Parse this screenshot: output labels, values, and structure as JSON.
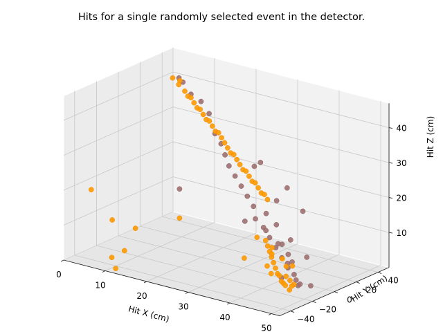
{
  "chart_data": {
    "type": "scatter",
    "title": "Hits for a single randomly selected event in the detector.",
    "xlabel": "Hit X (cm)",
    "ylabel": "Hit Y (cm)",
    "zlabel": "Hit Z (cm)",
    "xticks": [
      "0",
      "10",
      "20",
      "30",
      "40",
      "50"
    ],
    "yticks": [
      "−40",
      "−20",
      "0",
      "20",
      "40"
    ],
    "zticks": [
      "10",
      "20",
      "30",
      "40"
    ],
    "grid": true,
    "series": [
      {
        "color": "#a07070",
        "points_xyz": [
          [
            3,
            44,
            40
          ],
          [
            5,
            40,
            40
          ],
          [
            8,
            36,
            38
          ],
          [
            12,
            30,
            38
          ],
          [
            15,
            26,
            36
          ],
          [
            18,
            20,
            32
          ],
          [
            20,
            18,
            30
          ],
          [
            22,
            14,
            28
          ],
          [
            24,
            10,
            26
          ],
          [
            26,
            8,
            24
          ],
          [
            28,
            6,
            22
          ],
          [
            30,
            4,
            20
          ],
          [
            32,
            2,
            18
          ],
          [
            33,
            0,
            15
          ],
          [
            36,
            -4,
            14
          ],
          [
            38,
            -6,
            12
          ],
          [
            40,
            -8,
            10
          ],
          [
            42,
            -10,
            8
          ],
          [
            44,
            -12,
            6
          ],
          [
            46,
            -14,
            5
          ],
          [
            47,
            -16,
            4
          ],
          [
            48,
            -18,
            3
          ],
          [
            49,
            -20,
            4
          ],
          [
            45,
            -12,
            8
          ],
          [
            43,
            -8,
            9
          ],
          [
            41,
            -6,
            11
          ],
          [
            39,
            -2,
            10
          ],
          [
            35,
            2,
            12
          ],
          [
            37,
            4,
            14
          ],
          [
            34,
            6,
            16
          ],
          [
            31,
            -2,
            14
          ],
          [
            46,
            -20,
            9
          ],
          [
            48,
            -10,
            10
          ],
          [
            50,
            -14,
            3
          ],
          [
            44,
            -18,
            4
          ],
          [
            28,
            18,
            26
          ],
          [
            30,
            16,
            28
          ],
          [
            10,
            18,
            14
          ],
          [
            46,
            -6,
            22
          ],
          [
            38,
            10,
            24
          ],
          [
            36,
            8,
            20
          ],
          [
            42,
            -2,
            12
          ]
        ]
      },
      {
        "color": "#ff9a00",
        "points_xyz": [
          [
            2,
            42,
            40
          ],
          [
            4,
            41,
            40
          ],
          [
            4,
            40,
            39
          ],
          [
            6,
            38,
            38
          ],
          [
            7,
            37,
            37
          ],
          [
            8,
            36,
            37
          ],
          [
            9,
            35,
            36
          ],
          [
            10,
            34,
            35
          ],
          [
            11,
            33,
            35
          ],
          [
            12,
            32,
            34
          ],
          [
            13,
            31,
            33
          ],
          [
            14,
            30,
            33
          ],
          [
            15,
            29,
            32
          ],
          [
            16,
            28,
            31
          ],
          [
            17,
            27,
            31
          ],
          [
            18,
            26,
            30
          ],
          [
            19,
            25,
            29
          ],
          [
            20,
            24,
            28
          ],
          [
            21,
            23,
            27
          ],
          [
            22,
            22,
            27
          ],
          [
            23,
            21,
            26
          ],
          [
            24,
            20,
            25
          ],
          [
            25,
            19,
            24
          ],
          [
            26,
            18,
            24
          ],
          [
            27,
            17,
            23
          ],
          [
            28,
            16,
            22
          ],
          [
            29,
            15,
            22
          ],
          [
            30,
            14,
            21
          ],
          [
            31,
            13,
            20
          ],
          [
            32,
            12,
            20
          ],
          [
            33,
            11,
            19
          ],
          [
            36,
            -2,
            10
          ],
          [
            37,
            -4,
            9
          ],
          [
            38,
            -6,
            8
          ],
          [
            39,
            -8,
            7
          ],
          [
            40,
            -10,
            6
          ],
          [
            41,
            -12,
            5
          ],
          [
            42,
            -14,
            4
          ],
          [
            43,
            -16,
            4
          ],
          [
            44,
            -18,
            3
          ],
          [
            45,
            -20,
            3
          ],
          [
            46,
            -22,
            3
          ],
          [
            47,
            -22,
            2
          ],
          [
            38,
            -4,
            7
          ],
          [
            40,
            -2,
            6
          ],
          [
            42,
            -6,
            5
          ],
          [
            39,
            -12,
            5
          ],
          [
            41,
            -16,
            4
          ],
          [
            43,
            -10,
            3
          ],
          [
            45,
            -14,
            3
          ],
          [
            47,
            -18,
            3
          ],
          [
            44,
            -8,
            6
          ],
          [
            37,
            0,
            8
          ],
          [
            46,
            -16,
            2
          ],
          [
            4,
            -40,
            20
          ],
          [
            8,
            -36,
            12
          ],
          [
            12,
            -30,
            10
          ],
          [
            12,
            -40,
            5
          ],
          [
            10,
            -44,
            3
          ],
          [
            12,
            -48,
            1
          ],
          [
            34,
            -14,
            6
          ],
          [
            36,
            -10,
            12
          ],
          [
            20,
            -20,
            14
          ]
        ]
      }
    ]
  }
}
